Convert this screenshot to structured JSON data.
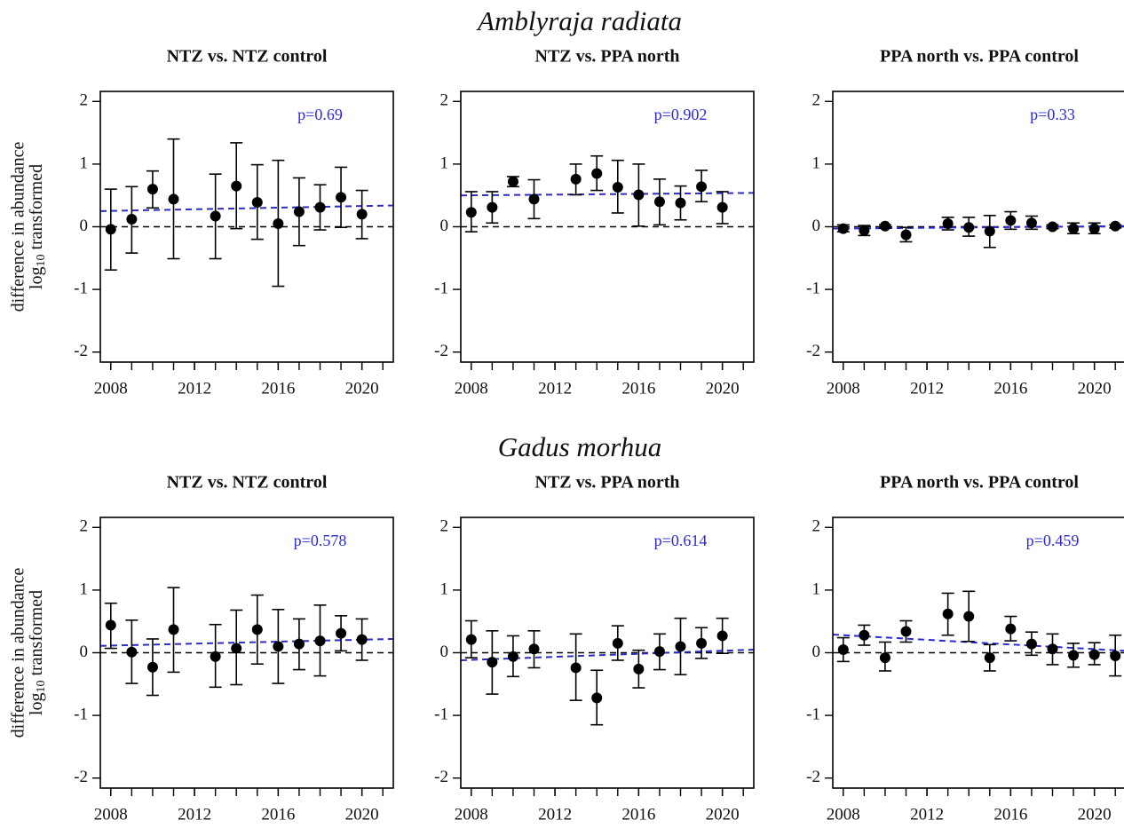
{
  "row_titles": [
    "Amblyraja radiata",
    "Gadus morhua"
  ],
  "chart_data": [
    {
      "type": "errorbar",
      "title": "NTZ vs. NTZ control",
      "annotation": "p=0.69",
      "ylabel": {
        "line1": "difference in abundance",
        "log": "log",
        "sub": "10",
        "rest": "transformed"
      },
      "x": [
        2008,
        2009,
        2010,
        2011,
        2013,
        2014,
        2015,
        2016,
        2017,
        2018,
        2019,
        2020
      ],
      "values": [
        -0.04,
        0.12,
        0.6,
        0.44,
        0.17,
        0.65,
        0.39,
        0.05,
        0.24,
        0.31,
        0.47,
        0.2
      ],
      "lower": [
        -0.69,
        -0.42,
        0.3,
        -0.51,
        -0.51,
        -0.03,
        -0.2,
        -0.95,
        -0.3,
        -0.05,
        -0.01,
        -0.19
      ],
      "upper": [
        0.6,
        0.64,
        0.89,
        1.4,
        0.84,
        1.34,
        0.99,
        1.06,
        0.78,
        0.67,
        0.95,
        0.58
      ],
      "trend": {
        "x": [
          2007.5,
          2021.5
        ],
        "y": [
          0.25,
          0.34
        ],
        "color": "#2b2bd0"
      },
      "hline": 0,
      "color": "#000000",
      "xlim": [
        2007.5,
        2021.5
      ],
      "xticks": [
        2008,
        2012,
        2016,
        2020
      ],
      "minor_xticks": [
        2008,
        2009,
        2010,
        2011,
        2012,
        2013,
        2014,
        2015,
        2016,
        2017,
        2018,
        2019,
        2020,
        2021
      ],
      "ylim": [
        -2.16,
        2.16
      ],
      "yticks": [
        -2,
        -1,
        0,
        1,
        2
      ]
    },
    {
      "type": "errorbar",
      "title": "NTZ vs. PPA north",
      "annotation": "p=0.902",
      "x": [
        2008,
        2009,
        2010,
        2011,
        2013,
        2014,
        2015,
        2016,
        2017,
        2018,
        2019,
        2020
      ],
      "values": [
        0.23,
        0.31,
        0.72,
        0.44,
        0.76,
        0.85,
        0.63,
        0.51,
        0.4,
        0.38,
        0.64,
        0.31
      ],
      "lower": [
        -0.08,
        0.06,
        0.64,
        0.13,
        0.51,
        0.58,
        0.22,
        0.01,
        0.03,
        0.11,
        0.4,
        0.05
      ],
      "upper": [
        0.56,
        0.56,
        0.8,
        0.75,
        1.0,
        1.13,
        1.06,
        1.0,
        0.76,
        0.65,
        0.9,
        0.56
      ],
      "trend": {
        "x": [
          2007.5,
          2021.5
        ],
        "y": [
          0.5,
          0.54
        ],
        "color": "#2b2bd0"
      },
      "hline": 0,
      "color": "#000000",
      "xlim": [
        2007.5,
        2021.5
      ],
      "xticks": [
        2008,
        2012,
        2016,
        2020
      ],
      "minor_xticks": [
        2008,
        2009,
        2010,
        2011,
        2012,
        2013,
        2014,
        2015,
        2016,
        2017,
        2018,
        2019,
        2020,
        2021
      ],
      "ylim": [
        -2.16,
        2.16
      ],
      "yticks": [
        -2,
        -1,
        0,
        1,
        2
      ]
    },
    {
      "type": "errorbar",
      "title": "PPA north vs. PPA control",
      "annotation": "p=0.33",
      "x": [
        2008,
        2009,
        2010,
        2011,
        2013,
        2014,
        2015,
        2016,
        2017,
        2018,
        2019,
        2020,
        2021
      ],
      "values": [
        -0.03,
        -0.06,
        0.01,
        -0.13,
        0.05,
        -0.01,
        -0.07,
        0.1,
        0.06,
        0.0,
        -0.03,
        -0.03,
        0.01
      ],
      "lower": [
        -0.08,
        -0.14,
        -0.02,
        -0.24,
        -0.05,
        -0.15,
        -0.33,
        -0.04,
        -0.04,
        -0.03,
        -0.11,
        -0.11,
        -0.02
      ],
      "upper": [
        0.03,
        0.02,
        0.03,
        -0.01,
        0.15,
        0.15,
        0.18,
        0.24,
        0.17,
        0.03,
        0.06,
        0.06,
        0.03
      ],
      "trend": {
        "x": [
          2007.5,
          2021.5
        ],
        "y": [
          -0.03,
          0.01
        ],
        "color": "#2b2bd0"
      },
      "hline": 0,
      "color": "#000000",
      "xlim": [
        2007.5,
        2021.5
      ],
      "xticks": [
        2008,
        2012,
        2016,
        2020
      ],
      "minor_xticks": [
        2008,
        2009,
        2010,
        2011,
        2012,
        2013,
        2014,
        2015,
        2016,
        2017,
        2018,
        2019,
        2020,
        2021
      ],
      "ylim": [
        -2.16,
        2.16
      ],
      "yticks": [
        -2,
        -1,
        0,
        1,
        2
      ]
    },
    {
      "type": "errorbar",
      "title": "NTZ vs. NTZ control",
      "annotation": "p=0.578",
      "ylabel": {
        "line1": "difference in abundance",
        "log": "log",
        "sub": "10",
        "rest": "transformed"
      },
      "x": [
        2008,
        2009,
        2010,
        2011,
        2013,
        2014,
        2015,
        2016,
        2017,
        2018,
        2019,
        2020
      ],
      "values": [
        0.44,
        0.01,
        -0.23,
        0.37,
        -0.06,
        0.07,
        0.37,
        0.1,
        0.14,
        0.19,
        0.31,
        0.21
      ],
      "lower": [
        0.07,
        -0.49,
        -0.68,
        -0.31,
        -0.55,
        -0.51,
        -0.18,
        -0.49,
        -0.27,
        -0.37,
        0.03,
        -0.12
      ],
      "upper": [
        0.79,
        0.52,
        0.22,
        1.04,
        0.45,
        0.68,
        0.92,
        0.69,
        0.54,
        0.76,
        0.59,
        0.54
      ],
      "trend": {
        "x": [
          2007.5,
          2021.5
        ],
        "y": [
          0.11,
          0.22
        ],
        "color": "#2b2bd0"
      },
      "hline": 0,
      "color": "#000000",
      "xlim": [
        2007.5,
        2021.5
      ],
      "xticks": [
        2008,
        2012,
        2016,
        2020
      ],
      "minor_xticks": [
        2008,
        2009,
        2010,
        2011,
        2012,
        2013,
        2014,
        2015,
        2016,
        2017,
        2018,
        2019,
        2020,
        2021
      ],
      "ylim": [
        -2.16,
        2.16
      ],
      "yticks": [
        -2,
        -1,
        0,
        1,
        2
      ]
    },
    {
      "type": "errorbar",
      "title": "NTZ vs. PPA north",
      "annotation": "p=0.614",
      "x": [
        2008,
        2009,
        2010,
        2011,
        2013,
        2014,
        2015,
        2016,
        2017,
        2018,
        2019,
        2020
      ],
      "values": [
        0.21,
        -0.15,
        -0.06,
        0.06,
        -0.24,
        -0.72,
        0.15,
        -0.26,
        0.02,
        0.1,
        0.15,
        0.27
      ],
      "lower": [
        -0.08,
        -0.66,
        -0.38,
        -0.24,
        -0.76,
        -1.15,
        -0.12,
        -0.56,
        -0.27,
        -0.35,
        -0.09,
        -0.01
      ],
      "upper": [
        0.51,
        0.35,
        0.27,
        0.35,
        0.3,
        -0.28,
        0.43,
        0.04,
        0.3,
        0.55,
        0.4,
        0.55
      ],
      "trend": {
        "x": [
          2007.5,
          2021.5
        ],
        "y": [
          -0.12,
          0.05
        ],
        "color": "#2b2bd0"
      },
      "hline": 0,
      "color": "#000000",
      "xlim": [
        2007.5,
        2021.5
      ],
      "xticks": [
        2008,
        2012,
        2016,
        2020
      ],
      "minor_xticks": [
        2008,
        2009,
        2010,
        2011,
        2012,
        2013,
        2014,
        2015,
        2016,
        2017,
        2018,
        2019,
        2020,
        2021
      ],
      "ylim": [
        -2.16,
        2.16
      ],
      "yticks": [
        -2,
        -1,
        0,
        1,
        2
      ]
    },
    {
      "type": "errorbar",
      "title": "PPA north vs. PPA control",
      "annotation": "p=0.459",
      "x": [
        2008,
        2009,
        2010,
        2011,
        2013,
        2014,
        2015,
        2016,
        2017,
        2018,
        2019,
        2020,
        2021
      ],
      "values": [
        0.05,
        0.28,
        -0.08,
        0.34,
        0.62,
        0.58,
        -0.08,
        0.38,
        0.14,
        0.06,
        -0.04,
        -0.03,
        -0.05
      ],
      "lower": [
        -0.14,
        0.12,
        -0.29,
        0.17,
        0.28,
        0.18,
        -0.29,
        0.19,
        -0.04,
        -0.19,
        -0.23,
        -0.19,
        -0.37
      ],
      "upper": [
        0.24,
        0.44,
        0.17,
        0.51,
        0.95,
        0.98,
        0.13,
        0.58,
        0.33,
        0.3,
        0.15,
        0.16,
        0.28
      ],
      "trend": {
        "x": [
          2007.5,
          2021.5
        ],
        "y": [
          0.29,
          0.03
        ],
        "color": "#2b2bd0"
      },
      "hline": 0,
      "color": "#000000",
      "xlim": [
        2007.5,
        2021.5
      ],
      "xticks": [
        2008,
        2012,
        2016,
        2020
      ],
      "minor_xticks": [
        2008,
        2009,
        2010,
        2011,
        2012,
        2013,
        2014,
        2015,
        2016,
        2017,
        2018,
        2019,
        2020,
        2021
      ],
      "ylim": [
        -2.16,
        2.16
      ],
      "yticks": [
        -2,
        -1,
        0,
        1,
        2
      ]
    }
  ]
}
